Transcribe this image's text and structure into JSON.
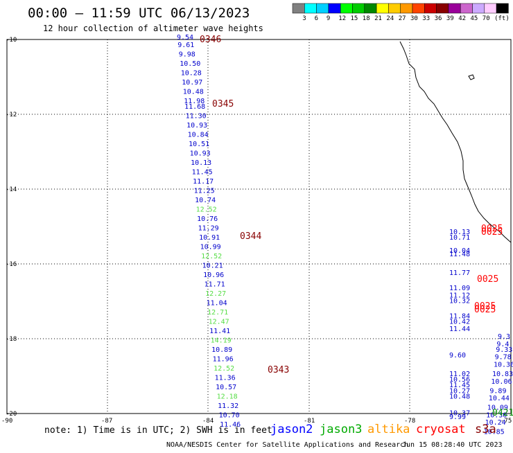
{
  "header": {
    "title": "00:00 – 11:59 UTC 06/13/2023",
    "subtitle": "12 hour collection of altimeter wave heights"
  },
  "legend": {
    "colors": [
      "#808080",
      "#00ffff",
      "#00d0ff",
      "#0000ff",
      "#00ff00",
      "#00cc00",
      "#008800",
      "#ffff00",
      "#ffcc00",
      "#ff9900",
      "#ff4400",
      "#cc0000",
      "#880000",
      "#990099",
      "#cc66cc",
      "#ccaaff",
      "#ffccff",
      "#000000"
    ],
    "labels": [
      "3",
      "6",
      "9",
      "12",
      "15",
      "18",
      "21",
      "24",
      "27",
      "30",
      "33",
      "36",
      "39",
      "42",
      "45",
      "70",
      "(ft)"
    ]
  },
  "axes": {
    "y_labels": [
      "-10",
      "-12",
      "-14",
      "-16",
      "-18",
      "-20"
    ],
    "x_labels": [
      "-90",
      "-87",
      "-84",
      "-81",
      "-78",
      "-75"
    ]
  },
  "tracks": [
    {
      "color": "#0000cc",
      "points": [
        [
          "9.54",
          -10.0
        ],
        [
          "9.61",
          -10.2
        ],
        [
          "9.98",
          -10.45
        ],
        [
          "10.50",
          -10.7
        ],
        [
          "10.28",
          -10.95
        ],
        [
          "10.97",
          -11.2
        ],
        [
          "10.48",
          -11.45
        ]
      ]
    },
    {
      "color": "#0000cc",
      "points": [
        [
          "11.98",
          -11.7
        ],
        [
          "11.68",
          -11.85
        ],
        [
          "11.30",
          -12.1
        ],
        [
          "10.93",
          -12.35
        ],
        [
          "10.84",
          -12.6
        ],
        [
          "10.51",
          -12.85
        ],
        [
          "10.93",
          -13.1
        ],
        [
          "10.13",
          -13.35
        ],
        [
          "11.45",
          -13.6
        ],
        [
          "11.17",
          -13.85
        ],
        [
          "11.25",
          -14.1
        ],
        [
          "10.74",
          -14.35
        ]
      ]
    },
    {
      "color": "#55dd44",
      "points": [
        [
          "12.52",
          -14.6
        ]
      ]
    },
    {
      "color": "#0000cc",
      "points": [
        [
          "10.76",
          -14.85
        ],
        [
          "11.29",
          -15.1
        ],
        [
          "10.91",
          -15.35
        ],
        [
          "10.99",
          -15.6
        ]
      ]
    },
    {
      "color": "#55dd44",
      "points": [
        [
          "12.52",
          -15.85
        ]
      ]
    },
    {
      "color": "#0000cc",
      "points": [
        [
          "10.21",
          -16.1
        ],
        [
          "10.96",
          -16.35
        ],
        [
          "11.71",
          -16.6
        ]
      ]
    },
    {
      "color": "#55dd44",
      "points": [
        [
          "12.27",
          -16.85
        ]
      ]
    },
    {
      "color": "#0000cc",
      "points": [
        [
          "11.04",
          -17.1
        ]
      ]
    },
    {
      "color": "#55dd44",
      "points": [
        [
          "12.71",
          -17.35
        ],
        [
          "12.47",
          -17.6
        ]
      ]
    },
    {
      "color": "#0000cc",
      "points": [
        [
          "11.41",
          -17.85
        ]
      ]
    },
    {
      "color": "#55dd44",
      "points": [
        [
          "14.19",
          -18.1
        ]
      ]
    },
    {
      "color": "#0000cc",
      "points": [
        [
          "10.89",
          -18.35
        ],
        [
          "11.96",
          -18.6
        ]
      ]
    },
    {
      "color": "#55dd44",
      "points": [
        [
          "12.52",
          -18.85
        ]
      ]
    },
    {
      "color": "#0000cc",
      "points": [
        [
          "11.36",
          -19.1
        ],
        [
          "10.57",
          -19.35
        ]
      ]
    },
    {
      "color": "#55dd44",
      "points": [
        [
          "12.18",
          -19.6
        ]
      ]
    },
    {
      "color": "#0000cc",
      "points": [
        [
          "11.32",
          -19.85
        ],
        [
          "10.70",
          -20.1
        ],
        [
          "11.46",
          -20.35
        ]
      ]
    },
    {
      "color": "#0000cc",
      "points": [
        [
          "10.13",
          -15.2
        ],
        [
          "10.71",
          -15.35
        ],
        [
          "10.04",
          -15.7
        ],
        [
          "11.48",
          -15.8
        ],
        [
          "11.77",
          -16.3
        ],
        [
          "11.09",
          -16.7
        ],
        [
          "11.12",
          -16.9
        ],
        [
          "10.32",
          -17.05
        ],
        [
          "11.84",
          -17.45
        ],
        [
          "10.42",
          -17.6
        ],
        [
          "11.44",
          -17.8
        ],
        [
          "9.60",
          -18.5
        ],
        [
          "11.02",
          -19.0
        ],
        [
          "10.56",
          -19.15
        ],
        [
          "11.45",
          -19.3
        ],
        [
          "10.27",
          -19.45
        ],
        [
          "10.48",
          -19.6
        ],
        [
          "10.37",
          -20.05
        ],
        [
          "9.99",
          -20.15
        ]
      ]
    },
    {
      "color": "#0000cc",
      "points": [
        [
          "9.3",
          -18.0
        ],
        [
          "9.4",
          -18.2
        ],
        [
          "9.33",
          -18.35
        ],
        [
          "9.78",
          -18.55
        ],
        [
          "10.36",
          -18.75
        ],
        [
          "10.83",
          -19.0
        ],
        [
          "10.06",
          -19.2
        ],
        [
          "9.89",
          -19.45
        ],
        [
          "10.44",
          -19.65
        ],
        [
          "10.09",
          -19.9
        ],
        [
          "10.30",
          -20.1
        ],
        [
          "10.24",
          -20.3
        ],
        [
          "10.85",
          -20.55
        ]
      ]
    }
  ],
  "time_labels": [
    {
      "text": "0346",
      "color": "#880000"
    },
    {
      "text": "0345",
      "color": "#880000"
    },
    {
      "text": "0344",
      "color": "#880000"
    },
    {
      "text": "0343",
      "color": "#880000"
    },
    {
      "text": "0025",
      "color": "#ff0000"
    },
    {
      "text": "0025",
      "color": "#ff0000"
    },
    {
      "text": "0025",
      "color": "#ff0000"
    },
    {
      "text": "0025",
      "color": "#ff0000"
    },
    {
      "text": "0025",
      "color": "#ff0000"
    },
    {
      "text": "0421",
      "color": "#008800"
    }
  ],
  "footer": {
    "note": "note: 1) Time is in UTC; 2) SWH is in feet",
    "satellites": [
      {
        "name": "jason2",
        "color": "#0000ff"
      },
      {
        "name": "jason3",
        "color": "#00aa00"
      },
      {
        "name": "altika",
        "color": "#ff9900"
      },
      {
        "name": "cryosat",
        "color": "#ff0000"
      },
      {
        "name": "s3a",
        "color": "#880000"
      }
    ],
    "credit": "NOAA/NESDIS Center for Satellite Applications and Research",
    "timestamp": "Jun 15 08:28:40 UTC 2023"
  }
}
